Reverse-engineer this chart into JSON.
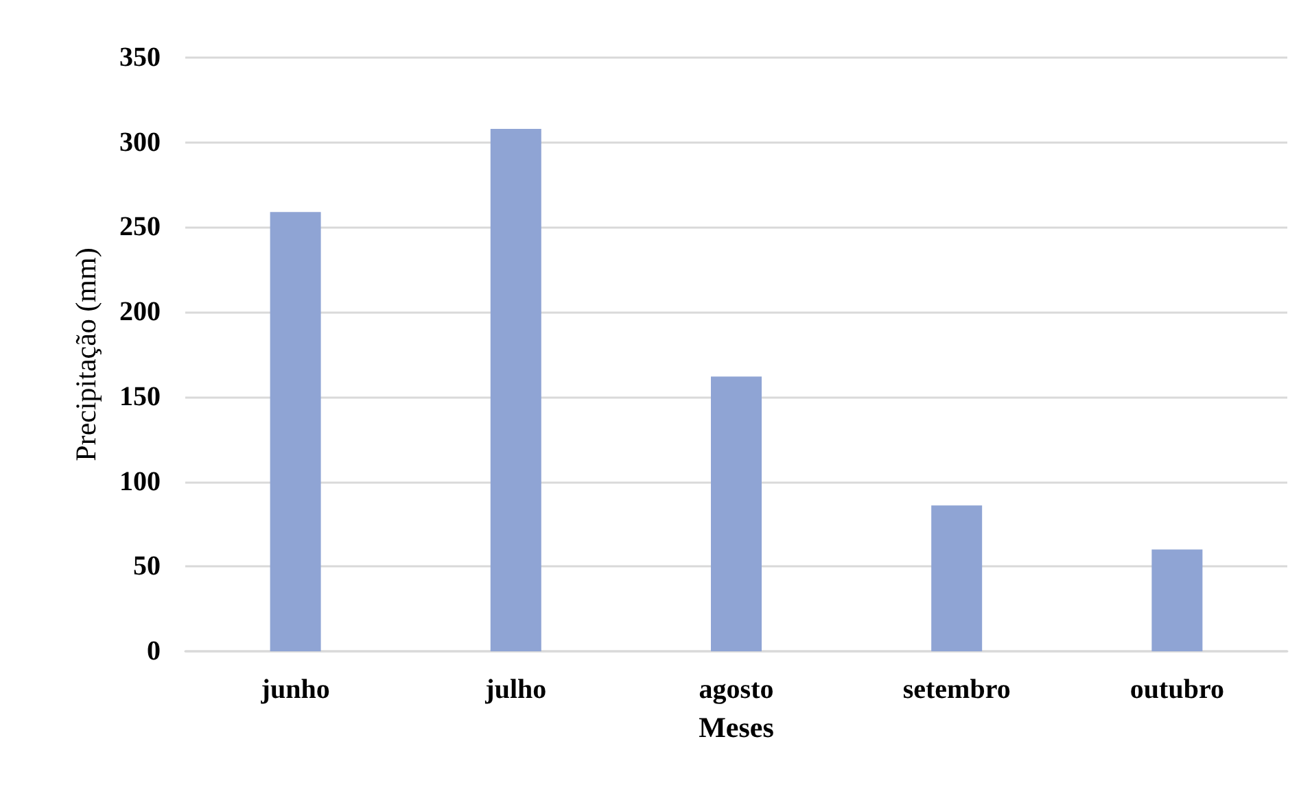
{
  "chart_data": {
    "type": "bar",
    "xlabel": "Meses",
    "ylabel": "Precipitação (mm)",
    "categories": [
      "junho",
      "julho",
      "agosto",
      "setembro",
      "outubro"
    ],
    "values": [
      259,
      308,
      162,
      86,
      60
    ],
    "color": "#8fa4d4",
    "ylim": [
      0,
      350
    ],
    "yticks": [
      0,
      50,
      100,
      150,
      200,
      250,
      300,
      350
    ],
    "grid": "y"
  }
}
